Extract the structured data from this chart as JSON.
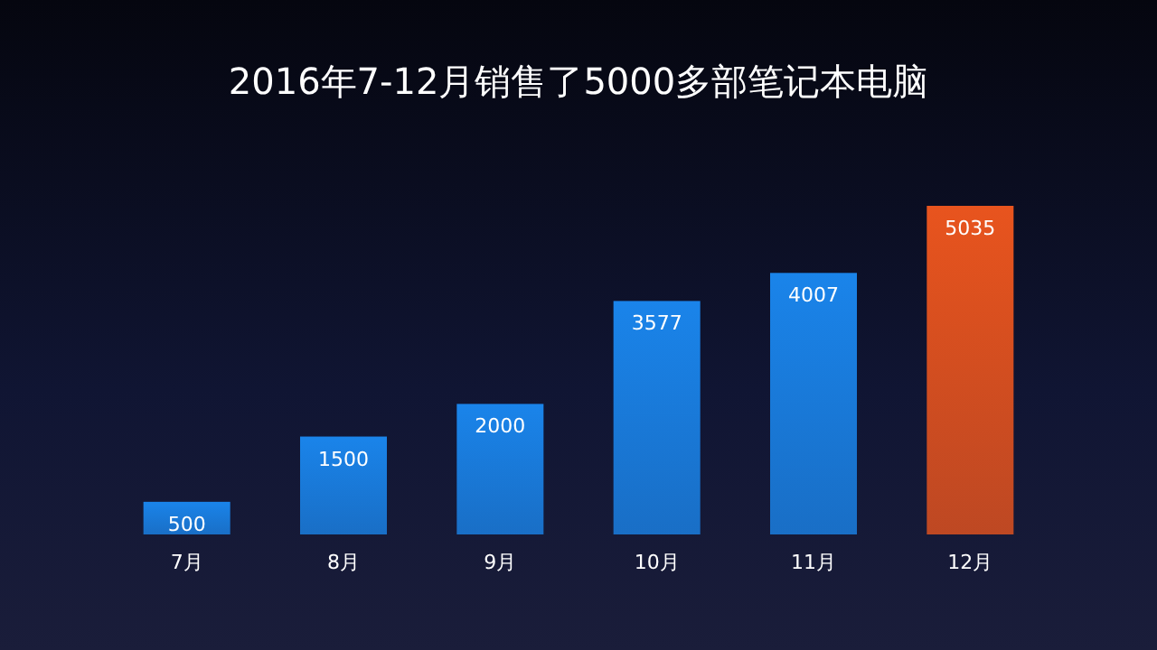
{
  "chart_data": {
    "type": "bar",
    "title": "2016年7-12月销售了5000多部笔记本电脑",
    "categories": [
      "7月",
      "8月",
      "9月",
      "10月",
      "11月",
      "12月"
    ],
    "values": [
      500,
      1500,
      2000,
      3577,
      4007,
      5035
    ],
    "colors": [
      "#1a84ea",
      "#1a84ea",
      "#1a84ea",
      "#1a84ea",
      "#1a84ea",
      "#e8541e"
    ],
    "data_labels": true
  }
}
